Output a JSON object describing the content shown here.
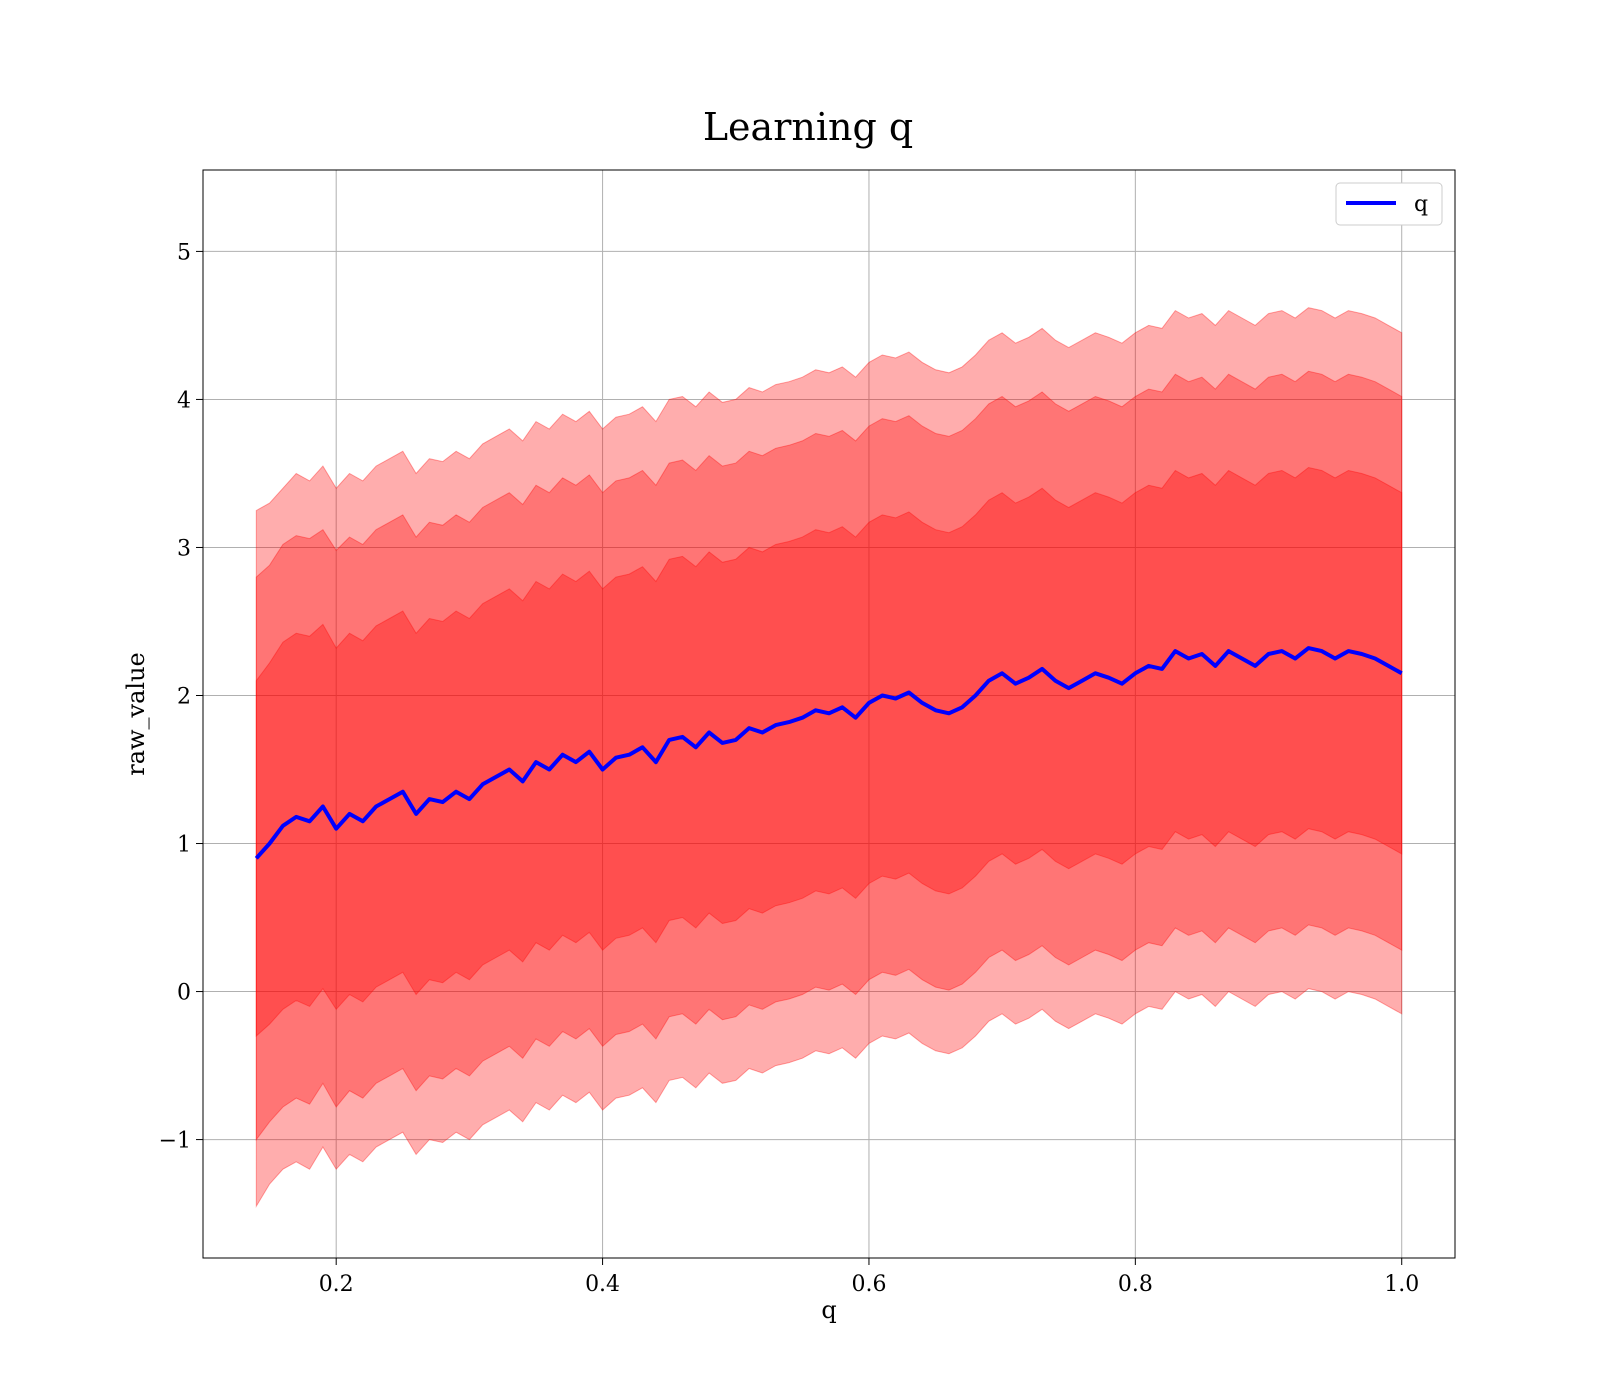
{
  "chart_data": {
    "type": "line",
    "title": "Learning q",
    "xlabel": "q",
    "ylabel": "raw_value",
    "xlim": [
      0.1,
      1.04
    ],
    "ylim": [
      -1.8,
      5.55
    ],
    "xticks": [
      0.2,
      0.4,
      0.6,
      0.8,
      1.0
    ],
    "xtick_labels": [
      "0.2",
      "0.4",
      "0.6",
      "0.8",
      "1.0"
    ],
    "yticks": [
      -1,
      0,
      1,
      2,
      3,
      4,
      5
    ],
    "ytick_labels": [
      "−1",
      "0",
      "1",
      "2",
      "3",
      "4",
      "5"
    ],
    "grid": true,
    "legend": {
      "position": "top-right",
      "entries": [
        "q"
      ]
    },
    "colors": {
      "mean_line": "#0000ff",
      "band": "#ff0000",
      "grid": "#b0b0b0"
    },
    "series": [
      {
        "name": "q",
        "x": [
          0.14,
          0.15,
          0.16,
          0.17,
          0.18,
          0.19,
          0.2,
          0.21,
          0.22,
          0.23,
          0.24,
          0.25,
          0.26,
          0.27,
          0.28,
          0.29,
          0.3,
          0.31,
          0.32,
          0.33,
          0.34,
          0.35,
          0.36,
          0.37,
          0.38,
          0.39,
          0.4,
          0.41,
          0.42,
          0.43,
          0.44,
          0.45,
          0.46,
          0.47,
          0.48,
          0.49,
          0.5,
          0.51,
          0.52,
          0.53,
          0.54,
          0.55,
          0.56,
          0.57,
          0.58,
          0.59,
          0.6,
          0.61,
          0.62,
          0.63,
          0.64,
          0.65,
          0.66,
          0.67,
          0.68,
          0.69,
          0.7,
          0.71,
          0.72,
          0.73,
          0.74,
          0.75,
          0.76,
          0.77,
          0.78,
          0.79,
          0.8,
          0.81,
          0.82,
          0.83,
          0.84,
          0.85,
          0.86,
          0.87,
          0.88,
          0.89,
          0.9,
          0.91,
          0.92,
          0.93,
          0.94,
          0.95,
          0.96,
          0.97,
          0.98,
          0.99,
          1.0
        ],
        "y": [
          0.9,
          1.0,
          1.12,
          1.18,
          1.15,
          1.25,
          1.1,
          1.2,
          1.15,
          1.25,
          1.3,
          1.35,
          1.2,
          1.3,
          1.28,
          1.35,
          1.3,
          1.4,
          1.45,
          1.5,
          1.42,
          1.55,
          1.5,
          1.6,
          1.55,
          1.62,
          1.5,
          1.58,
          1.6,
          1.65,
          1.55,
          1.7,
          1.72,
          1.65,
          1.75,
          1.68,
          1.7,
          1.78,
          1.75,
          1.8,
          1.82,
          1.85,
          1.9,
          1.88,
          1.92,
          1.85,
          1.95,
          2.0,
          1.98,
          2.02,
          1.95,
          1.9,
          1.88,
          1.92,
          2.0,
          2.1,
          2.15,
          2.08,
          2.12,
          2.18,
          2.1,
          2.05,
          2.1,
          2.15,
          2.12,
          2.08,
          2.15,
          2.2,
          2.18,
          2.3,
          2.25,
          2.28,
          2.2,
          2.3,
          2.25,
          2.2,
          2.28,
          2.3,
          2.25,
          2.32,
          2.3,
          2.25,
          2.3,
          2.28,
          2.25,
          2.2,
          2.15
        ]
      }
    ],
    "bands": [
      {
        "lower": [
          -1.45,
          -1.3,
          -1.2,
          -1.15,
          -1.2,
          -1.05,
          -1.2,
          -1.1,
          -1.15,
          -1.05,
          -1.0,
          -0.95,
          -1.1,
          -1.0,
          -1.02,
          -0.95,
          -1.0,
          -0.9,
          -0.85,
          -0.8,
          -0.88,
          -0.75,
          -0.8,
          -0.7,
          -0.75,
          -0.68,
          -0.8,
          -0.72,
          -0.7,
          -0.65,
          -0.75,
          -0.6,
          -0.58,
          -0.65,
          -0.55,
          -0.62,
          -0.6,
          -0.52,
          -0.55,
          -0.5,
          -0.48,
          -0.45,
          -0.4,
          -0.42,
          -0.38,
          -0.45,
          -0.35,
          -0.3,
          -0.32,
          -0.28,
          -0.35,
          -0.4,
          -0.42,
          -0.38,
          -0.3,
          -0.2,
          -0.15,
          -0.22,
          -0.18,
          -0.12,
          -0.2,
          -0.25,
          -0.2,
          -0.15,
          -0.18,
          -0.22,
          -0.15,
          -0.1,
          -0.12,
          0.0,
          -0.05,
          -0.02,
          -0.1,
          0.0,
          -0.05,
          -0.1,
          -0.02,
          0.0,
          -0.05,
          0.02,
          0.0,
          -0.05,
          0.0,
          -0.02,
          -0.05,
          -0.1,
          -0.15
        ],
        "upper": [
          3.25,
          3.3,
          3.4,
          3.5,
          3.45,
          3.55,
          3.4,
          3.5,
          3.45,
          3.55,
          3.6,
          3.65,
          3.5,
          3.6,
          3.58,
          3.65,
          3.6,
          3.7,
          3.75,
          3.8,
          3.72,
          3.85,
          3.8,
          3.9,
          3.85,
          3.92,
          3.8,
          3.88,
          3.9,
          3.95,
          3.85,
          4.0,
          4.02,
          3.95,
          4.05,
          3.98,
          4.0,
          4.08,
          4.05,
          4.1,
          4.12,
          4.15,
          4.2,
          4.18,
          4.22,
          4.15,
          4.25,
          4.3,
          4.28,
          4.32,
          4.25,
          4.2,
          4.18,
          4.22,
          4.3,
          4.4,
          4.45,
          4.38,
          4.42,
          4.48,
          4.4,
          4.35,
          4.4,
          4.45,
          4.42,
          4.38,
          4.45,
          4.5,
          4.48,
          4.6,
          4.55,
          4.58,
          4.5,
          4.6,
          4.55,
          4.5,
          4.58,
          4.6,
          4.55,
          4.62,
          4.6,
          4.55,
          4.6,
          4.58,
          4.55,
          4.5,
          4.45
        ]
      },
      {
        "lower": [
          -1.0,
          -0.88,
          -0.78,
          -0.72,
          -0.76,
          -0.62,
          -0.78,
          -0.67,
          -0.72,
          -0.62,
          -0.57,
          -0.52,
          -0.67,
          -0.57,
          -0.59,
          -0.52,
          -0.57,
          -0.47,
          -0.42,
          -0.37,
          -0.45,
          -0.32,
          -0.37,
          -0.27,
          -0.32,
          -0.25,
          -0.37,
          -0.29,
          -0.27,
          -0.22,
          -0.32,
          -0.17,
          -0.15,
          -0.22,
          -0.12,
          -0.19,
          -0.17,
          -0.09,
          -0.12,
          -0.07,
          -0.05,
          -0.02,
          0.03,
          0.01,
          0.05,
          -0.02,
          0.08,
          0.13,
          0.11,
          0.15,
          0.08,
          0.03,
          0.01,
          0.05,
          0.13,
          0.23,
          0.28,
          0.21,
          0.25,
          0.31,
          0.23,
          0.18,
          0.23,
          0.28,
          0.25,
          0.21,
          0.28,
          0.33,
          0.31,
          0.43,
          0.38,
          0.41,
          0.33,
          0.43,
          0.38,
          0.33,
          0.41,
          0.43,
          0.38,
          0.45,
          0.43,
          0.38,
          0.43,
          0.41,
          0.38,
          0.33,
          0.28
        ],
        "upper": [
          2.8,
          2.88,
          3.02,
          3.08,
          3.06,
          3.12,
          2.98,
          3.07,
          3.02,
          3.12,
          3.17,
          3.22,
          3.07,
          3.17,
          3.15,
          3.22,
          3.17,
          3.27,
          3.32,
          3.37,
          3.29,
          3.42,
          3.37,
          3.47,
          3.42,
          3.49,
          3.37,
          3.45,
          3.47,
          3.52,
          3.42,
          3.57,
          3.59,
          3.52,
          3.62,
          3.55,
          3.57,
          3.65,
          3.62,
          3.67,
          3.69,
          3.72,
          3.77,
          3.75,
          3.79,
          3.72,
          3.82,
          3.87,
          3.85,
          3.89,
          3.82,
          3.77,
          3.75,
          3.79,
          3.87,
          3.97,
          4.02,
          3.95,
          3.99,
          4.05,
          3.97,
          3.92,
          3.97,
          4.02,
          3.99,
          3.95,
          4.02,
          4.07,
          4.05,
          4.17,
          4.12,
          4.15,
          4.07,
          4.17,
          4.12,
          4.07,
          4.15,
          4.17,
          4.12,
          4.19,
          4.17,
          4.12,
          4.17,
          4.15,
          4.12,
          4.07,
          4.02
        ]
      },
      {
        "lower": [
          -0.3,
          -0.22,
          -0.12,
          -0.06,
          -0.1,
          0.02,
          -0.12,
          -0.02,
          -0.07,
          0.03,
          0.08,
          0.13,
          -0.02,
          0.08,
          0.06,
          0.13,
          0.08,
          0.18,
          0.23,
          0.28,
          0.2,
          0.33,
          0.28,
          0.38,
          0.33,
          0.4,
          0.28,
          0.36,
          0.38,
          0.43,
          0.33,
          0.48,
          0.5,
          0.43,
          0.53,
          0.46,
          0.48,
          0.56,
          0.53,
          0.58,
          0.6,
          0.63,
          0.68,
          0.66,
          0.7,
          0.63,
          0.73,
          0.78,
          0.76,
          0.8,
          0.73,
          0.68,
          0.66,
          0.7,
          0.78,
          0.88,
          0.93,
          0.86,
          0.9,
          0.96,
          0.88,
          0.83,
          0.88,
          0.93,
          0.9,
          0.86,
          0.93,
          0.98,
          0.96,
          1.08,
          1.03,
          1.06,
          0.98,
          1.08,
          1.03,
          0.98,
          1.06,
          1.08,
          1.03,
          1.1,
          1.08,
          1.03,
          1.08,
          1.06,
          1.03,
          0.98,
          0.93
        ],
        "upper": [
          2.1,
          2.22,
          2.36,
          2.42,
          2.4,
          2.48,
          2.32,
          2.42,
          2.37,
          2.47,
          2.52,
          2.57,
          2.42,
          2.52,
          2.5,
          2.57,
          2.52,
          2.62,
          2.67,
          2.72,
          2.64,
          2.77,
          2.72,
          2.82,
          2.77,
          2.84,
          2.72,
          2.8,
          2.82,
          2.87,
          2.77,
          2.92,
          2.94,
          2.87,
          2.97,
          2.9,
          2.92,
          3.0,
          2.97,
          3.02,
          3.04,
          3.07,
          3.12,
          3.1,
          3.14,
          3.07,
          3.17,
          3.22,
          3.2,
          3.24,
          3.17,
          3.12,
          3.1,
          3.14,
          3.22,
          3.32,
          3.37,
          3.3,
          3.34,
          3.4,
          3.32,
          3.27,
          3.32,
          3.37,
          3.34,
          3.3,
          3.37,
          3.42,
          3.4,
          3.52,
          3.47,
          3.5,
          3.42,
          3.52,
          3.47,
          3.42,
          3.5,
          3.52,
          3.47,
          3.54,
          3.52,
          3.47,
          3.52,
          3.5,
          3.47,
          3.42,
          3.37
        ]
      }
    ]
  }
}
